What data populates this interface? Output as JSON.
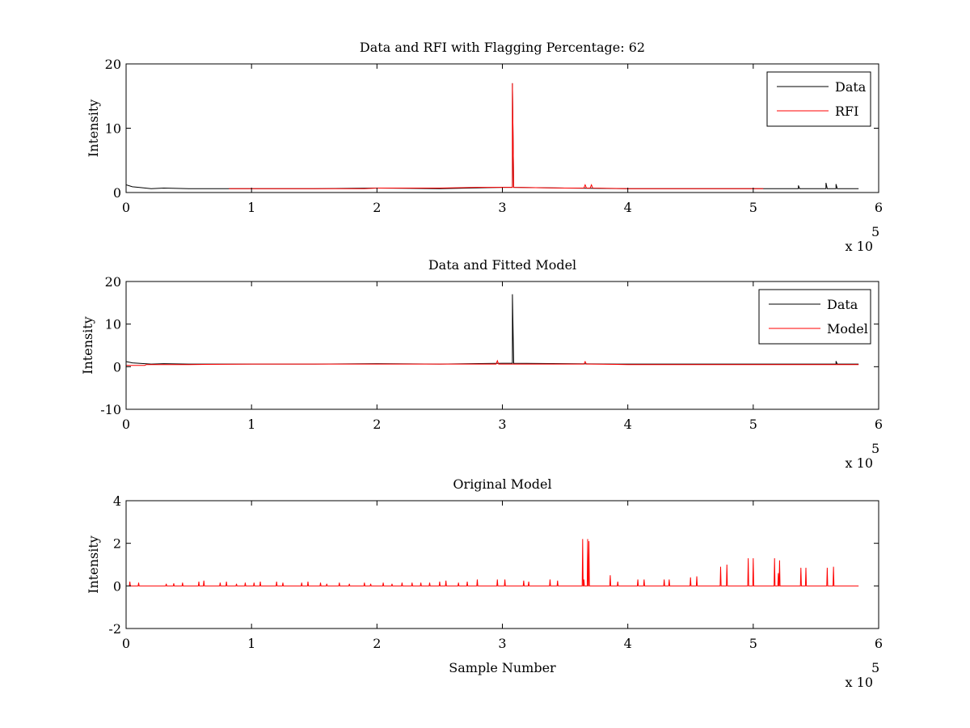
{
  "chart_data": [
    {
      "type": "line",
      "title": "Data and RFI with Flagging Percentage: 62",
      "ylabel": "Intensity",
      "xlabel": "",
      "xlim": [
        0,
        6
      ],
      "ylim": [
        0,
        20
      ],
      "xticks": [
        0,
        1,
        2,
        3,
        4,
        5,
        6
      ],
      "yticks": [
        0,
        10,
        20
      ],
      "x_multiplier": "x 10",
      "x_exponent": "5",
      "legend": {
        "position": "top-right",
        "entries": [
          {
            "name": "Data",
            "color": "#000000"
          },
          {
            "name": "RFI",
            "color": "#ff0000"
          }
        ]
      },
      "series": [
        {
          "name": "Data",
          "color": "#000000",
          "x": [
            0,
            0.05,
            0.1,
            0.2,
            0.3,
            0.5,
            0.8,
            1.0,
            1.5,
            2.0,
            2.5,
            3.0,
            3.08,
            3.08,
            3.09,
            3.5,
            4.0,
            4.5,
            5.0,
            5.3,
            5.36,
            5.36,
            5.37,
            5.5,
            5.58,
            5.58,
            5.59,
            5.66,
            5.66,
            5.67,
            5.8,
            5.84
          ],
          "y": [
            1.2,
            0.9,
            0.8,
            0.6,
            0.7,
            0.6,
            0.6,
            0.6,
            0.6,
            0.7,
            0.6,
            0.8,
            0.8,
            17,
            0.8,
            0.7,
            0.6,
            0.6,
            0.6,
            0.6,
            0.6,
            1.1,
            0.6,
            0.6,
            0.6,
            1.5,
            0.6,
            0.6,
            1.3,
            0.6,
            0.6,
            0.6
          ]
        },
        {
          "name": "RFI",
          "color": "#ff0000",
          "x": [
            0.82,
            1.0,
            1.5,
            1.9,
            2.0,
            2.5,
            2.8,
            3.0,
            3.08,
            3.08,
            3.09,
            3.5,
            3.65,
            3.66,
            3.67,
            3.7,
            3.71,
            3.72,
            4.0,
            4.5,
            5.0,
            5.08
          ],
          "y": [
            0.6,
            0.6,
            0.6,
            0.6,
            0.7,
            0.7,
            0.8,
            0.8,
            0.8,
            17,
            0.8,
            0.7,
            0.7,
            1.2,
            0.7,
            0.7,
            1.2,
            0.7,
            0.6,
            0.6,
            0.6,
            0.6
          ]
        }
      ]
    },
    {
      "type": "line",
      "title": "Data and Fitted Model",
      "ylabel": "Intensity",
      "xlabel": "",
      "xlim": [
        0,
        6
      ],
      "ylim": [
        -10,
        20
      ],
      "xticks": [
        0,
        1,
        2,
        3,
        4,
        5,
        6
      ],
      "yticks": [
        -10,
        0,
        10,
        20
      ],
      "x_multiplier": "x 10",
      "x_exponent": "5",
      "legend": {
        "position": "top-right",
        "entries": [
          {
            "name": "Data",
            "color": "#000000"
          },
          {
            "name": "Model",
            "color": "#ff0000"
          }
        ]
      },
      "series": [
        {
          "name": "Data",
          "color": "#000000",
          "x": [
            0,
            0.05,
            0.1,
            0.2,
            0.3,
            0.5,
            0.8,
            1.0,
            1.5,
            2.0,
            2.5,
            3.0,
            3.08,
            3.08,
            3.09,
            3.5,
            4.0,
            4.5,
            5.0,
            5.5,
            5.66,
            5.66,
            5.67,
            5.84
          ],
          "y": [
            1.2,
            0.9,
            0.8,
            0.6,
            0.7,
            0.6,
            0.6,
            0.6,
            0.6,
            0.7,
            0.6,
            0.8,
            0.8,
            17,
            0.8,
            0.7,
            0.6,
            0.6,
            0.6,
            0.6,
            0.6,
            1.3,
            0.6,
            0.6
          ]
        },
        {
          "name": "Model",
          "color": "#ff0000",
          "x": [
            0,
            0.15,
            0.16,
            0.3,
            0.5,
            1.0,
            1.5,
            2.0,
            2.5,
            2.95,
            2.96,
            2.97,
            3.0,
            3.5,
            3.65,
            3.66,
            3.67,
            3.7,
            4.0,
            4.5,
            5.0,
            5.5,
            5.84
          ],
          "y": [
            0.3,
            0.3,
            0.5,
            0.5,
            0.5,
            0.6,
            0.6,
            0.6,
            0.6,
            0.6,
            1.4,
            0.6,
            0.6,
            0.6,
            0.6,
            1.2,
            0.6,
            0.6,
            0.5,
            0.5,
            0.5,
            0.5,
            0.5
          ]
        }
      ]
    },
    {
      "type": "line",
      "title": "Original Model",
      "ylabel": "Intensity",
      "xlabel": "Sample Number",
      "xlim": [
        0,
        6
      ],
      "ylim": [
        -2,
        4
      ],
      "xticks": [
        0,
        1,
        2,
        3,
        4,
        5,
        6
      ],
      "yticks": [
        -2,
        0,
        2,
        4
      ],
      "x_multiplier": "x 10",
      "x_exponent": "5",
      "baseline": 0,
      "series": [
        {
          "name": "",
          "color": "#ff0000",
          "spike_x": [
            0.03,
            0.1,
            0.32,
            0.38,
            0.45,
            0.58,
            0.62,
            0.75,
            0.8,
            0.88,
            0.95,
            1.02,
            1.07,
            1.2,
            1.25,
            1.4,
            1.45,
            1.55,
            1.6,
            1.7,
            1.78,
            1.9,
            1.95,
            2.05,
            2.12,
            2.2,
            2.28,
            2.35,
            2.42,
            2.5,
            2.55,
            2.65,
            2.72,
            2.8,
            2.96,
            3.02,
            3.17,
            3.21,
            3.38,
            3.44,
            3.64,
            3.65,
            3.68,
            3.69,
            3.86,
            3.92,
            4.08,
            4.13,
            4.29,
            4.33,
            4.5,
            4.55,
            4.74,
            4.79,
            4.96,
            5.0,
            5.17,
            5.2,
            5.21,
            5.38,
            5.42,
            5.59,
            5.64
          ],
          "spike_y": [
            0.2,
            0.15,
            0.1,
            0.12,
            0.15,
            0.2,
            0.25,
            0.15,
            0.2,
            0.1,
            0.15,
            0.15,
            0.2,
            0.2,
            0.15,
            0.15,
            0.2,
            0.15,
            0.1,
            0.15,
            0.1,
            0.15,
            0.1,
            0.15,
            0.1,
            0.15,
            0.15,
            0.15,
            0.15,
            0.2,
            0.25,
            0.15,
            0.2,
            0.3,
            0.3,
            0.3,
            0.25,
            0.2,
            0.3,
            0.25,
            2.2,
            0.3,
            2.2,
            2.1,
            0.5,
            0.2,
            0.3,
            0.3,
            0.3,
            0.3,
            0.4,
            0.45,
            0.9,
            1.0,
            1.3,
            1.3,
            1.3,
            0.6,
            1.2,
            0.85,
            0.85,
            0.85,
            0.9
          ]
        }
      ]
    }
  ]
}
